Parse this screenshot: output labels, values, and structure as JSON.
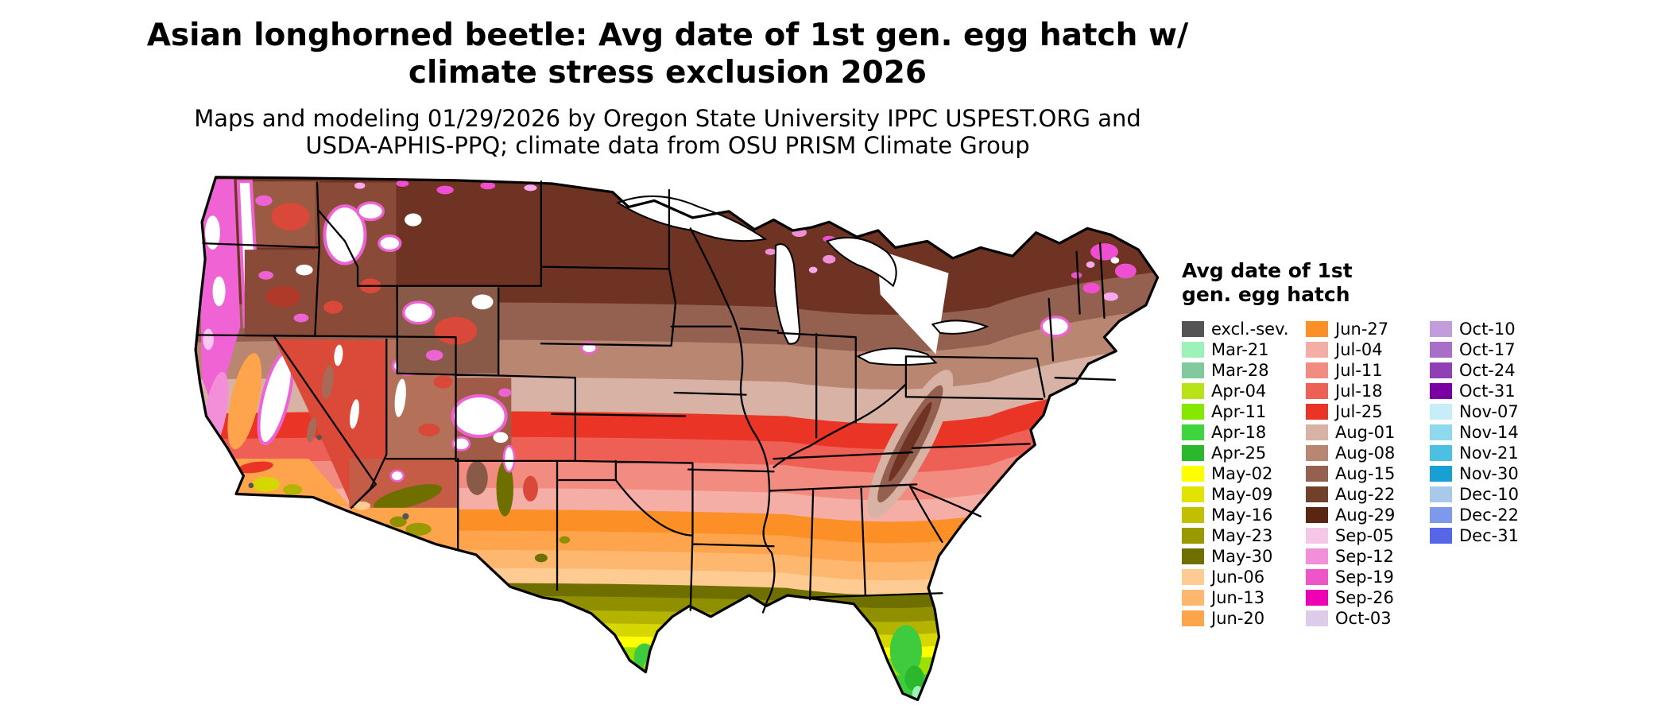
{
  "title": {
    "line1": "Asian longhorned beetle: Avg date of 1st gen. egg hatch w/",
    "line2": "climate stress exclusion 2026"
  },
  "subtitle": {
    "line1": "Maps and modeling 01/29/2026 by Oregon State University IPPC USPEST.ORG and",
    "line2": "USDA-APHIS-PPQ; climate data from OSU PRISM Climate Group"
  },
  "map": {
    "background": "#ffffff",
    "boundary_color": "#000000"
  },
  "legend": {
    "title_line1": "Avg date of 1st",
    "title_line2": "gen. egg hatch",
    "columns": [
      {
        "items": [
          {
            "label": "excl.-sev.",
            "color": "#545454"
          },
          {
            "label": "Mar-21",
            "color": "#9df2b8"
          },
          {
            "label": "Mar-28",
            "color": "#82c99e"
          },
          {
            "label": "Apr-04",
            "color": "#b8e317"
          },
          {
            "label": "Apr-11",
            "color": "#84e800"
          },
          {
            "label": "Apr-18",
            "color": "#3fd53f"
          },
          {
            "label": "Apr-25",
            "color": "#2cb82c"
          },
          {
            "label": "May-02",
            "color": "#ffff00"
          },
          {
            "label": "May-09",
            "color": "#e3e300"
          },
          {
            "label": "May-16",
            "color": "#c0c000"
          },
          {
            "label": "May-23",
            "color": "#9a9a00"
          },
          {
            "label": "May-30",
            "color": "#6f6f00"
          },
          {
            "label": "Jun-06",
            "color": "#fecb92"
          },
          {
            "label": "Jun-13",
            "color": "#feb76e"
          },
          {
            "label": "Jun-20",
            "color": "#fda44c"
          }
        ]
      },
      {
        "items": [
          {
            "label": "Jun-27",
            "color": "#fc9026"
          },
          {
            "label": "Jul-04",
            "color": "#f5aea5"
          },
          {
            "label": "Jul-11",
            "color": "#f28b80"
          },
          {
            "label": "Jul-18",
            "color": "#ee6055"
          },
          {
            "label": "Jul-25",
            "color": "#ea3425"
          },
          {
            "label": "Aug-01",
            "color": "#d8b2a4"
          },
          {
            "label": "Aug-08",
            "color": "#b98672"
          },
          {
            "label": "Aug-15",
            "color": "#946050"
          },
          {
            "label": "Aug-22",
            "color": "#71402b"
          },
          {
            "label": "Aug-29",
            "color": "#5a2612"
          },
          {
            "label": "Sep-05",
            "color": "#f6c6e7"
          },
          {
            "label": "Sep-12",
            "color": "#f28fd8"
          },
          {
            "label": "Sep-19",
            "color": "#ee55c8"
          },
          {
            "label": "Sep-26",
            "color": "#ee00b4"
          },
          {
            "label": "Oct-03",
            "color": "#dccbe9"
          }
        ]
      },
      {
        "items": [
          {
            "label": "Oct-10",
            "color": "#c29cdb"
          },
          {
            "label": "Oct-17",
            "color": "#a96fc8"
          },
          {
            "label": "Oct-24",
            "color": "#9040b4"
          },
          {
            "label": "Oct-31",
            "color": "#7a00a4"
          },
          {
            "label": "Nov-07",
            "color": "#c6edf8"
          },
          {
            "label": "Nov-14",
            "color": "#8fd9ee"
          },
          {
            "label": "Nov-21",
            "color": "#4cc0e2"
          },
          {
            "label": "Nov-30",
            "color": "#189fd4"
          },
          {
            "label": "Dec-10",
            "color": "#a9c9ea"
          },
          {
            "label": "Dec-22",
            "color": "#7e99ec"
          },
          {
            "label": "Dec-31",
            "color": "#5566e8"
          }
        ]
      }
    ]
  }
}
